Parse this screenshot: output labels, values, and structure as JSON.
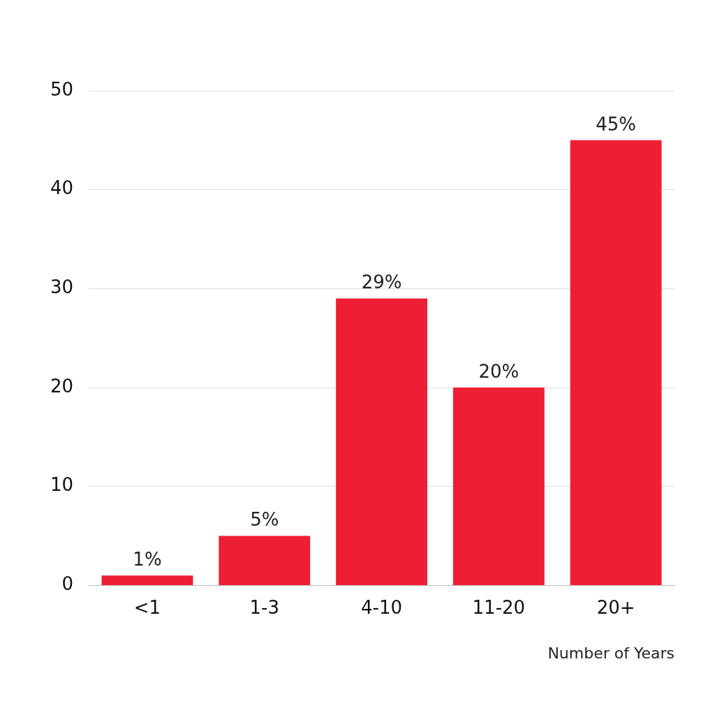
{
  "chart_data": {
    "type": "bar",
    "x_label": "Number of Years",
    "categories": [
      "<1",
      "1-3",
      "4-10",
      "11-20",
      "20+"
    ],
    "values": [
      1,
      5,
      29,
      20,
      45
    ],
    "value_labels": [
      "1%",
      "5%",
      "29%",
      "20%",
      "45%"
    ],
    "color": "#ee1f35",
    "ylim": [
      0,
      50
    ],
    "yticks": [
      0,
      10,
      20,
      30,
      40,
      50
    ],
    "grid": true,
    "data_labels": true
  }
}
